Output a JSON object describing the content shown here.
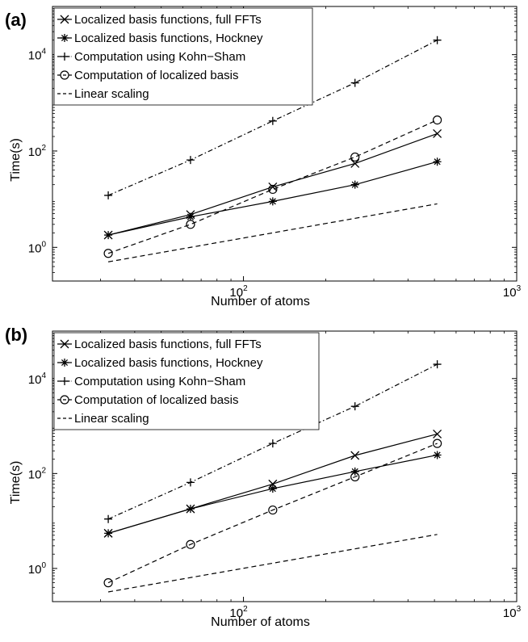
{
  "chart_data": [
    {
      "type": "line",
      "panel_label": "(a)",
      "xlabel": "Number of atoms",
      "ylabel": "Time(s)",
      "xscale": "log",
      "yscale": "log",
      "xlim": [
        20,
        1000
      ],
      "ylim": [
        0.2,
        100000
      ],
      "xticks": [
        {
          "base": "10",
          "exp": "2",
          "value": 100
        },
        {
          "base": "10",
          "exp": "3",
          "value": 1000
        }
      ],
      "yticks": [
        {
          "base": "10",
          "exp": "0",
          "value": 1
        },
        {
          "base": "10",
          "exp": "2",
          "value": 100
        },
        {
          "base": "10",
          "exp": "4",
          "value": 10000
        }
      ],
      "grid": false,
      "legend_position": "top-left",
      "series": [
        {
          "name": "Localized basis functions, full FFTs",
          "marker": "x",
          "dash": "solid",
          "x": [
            32,
            64,
            128,
            256,
            512
          ],
          "y": [
            1.8,
            4.8,
            18,
            55,
            230
          ]
        },
        {
          "name": "Localized basis functions, Hockney",
          "marker": "asterisk",
          "dash": "solid",
          "x": [
            32,
            64,
            128,
            256,
            512
          ],
          "y": [
            1.8,
            4.3,
            9,
            20,
            60
          ]
        },
        {
          "name": "Computation using Kohn−Sham",
          "marker": "plus",
          "dash": "dashdot",
          "x": [
            32,
            64,
            128,
            256,
            512
          ],
          "y": [
            12,
            65,
            420,
            2600,
            20000
          ]
        },
        {
          "name": "Computation of localized basis",
          "marker": "circle",
          "dash": "dashed",
          "x": [
            32,
            64,
            128,
            256,
            512
          ],
          "y": [
            0.75,
            3,
            16,
            75,
            440
          ]
        },
        {
          "name": "Linear scaling",
          "marker": "none",
          "dash": "dashed",
          "x": [
            32,
            512
          ],
          "y": [
            0.5,
            8
          ]
        }
      ]
    },
    {
      "type": "line",
      "panel_label": "(b)",
      "xlabel": "Number of atoms",
      "ylabel": "Time(s)",
      "xscale": "log",
      "yscale": "log",
      "xlim": [
        20,
        1000
      ],
      "ylim": [
        0.2,
        100000
      ],
      "xticks": [
        {
          "base": "10",
          "exp": "2",
          "value": 100
        },
        {
          "base": "10",
          "exp": "3",
          "value": 1000
        }
      ],
      "yticks": [
        {
          "base": "10",
          "exp": "0",
          "value": 1
        },
        {
          "base": "10",
          "exp": "2",
          "value": 100
        },
        {
          "base": "10",
          "exp": "4",
          "value": 10000
        }
      ],
      "grid": false,
      "legend_position": "top-left",
      "series": [
        {
          "name": "Localized basis functions, full FFTs",
          "marker": "x",
          "dash": "solid",
          "x": [
            32,
            64,
            128,
            256,
            512
          ],
          "y": [
            5.5,
            18,
            60,
            240,
            680
          ]
        },
        {
          "name": "Localized basis functions, Hockney",
          "marker": "asterisk",
          "dash": "solid",
          "x": [
            32,
            64,
            128,
            256,
            512
          ],
          "y": [
            5.5,
            18,
            48,
            110,
            245
          ]
        },
        {
          "name": "Computation using Kohn−Sham",
          "marker": "plus",
          "dash": "dashdot",
          "x": [
            32,
            64,
            128,
            256,
            512
          ],
          "y": [
            11,
            65,
            430,
            2600,
            20000
          ]
        },
        {
          "name": "Computation of localized basis",
          "marker": "circle",
          "dash": "dashed",
          "x": [
            32,
            64,
            128,
            256,
            512
          ],
          "y": [
            0.5,
            3.2,
            17,
            85,
            430
          ]
        },
        {
          "name": "Linear scaling",
          "marker": "none",
          "dash": "dashed",
          "x": [
            32,
            512
          ],
          "y": [
            0.32,
            5.2
          ]
        }
      ]
    }
  ]
}
